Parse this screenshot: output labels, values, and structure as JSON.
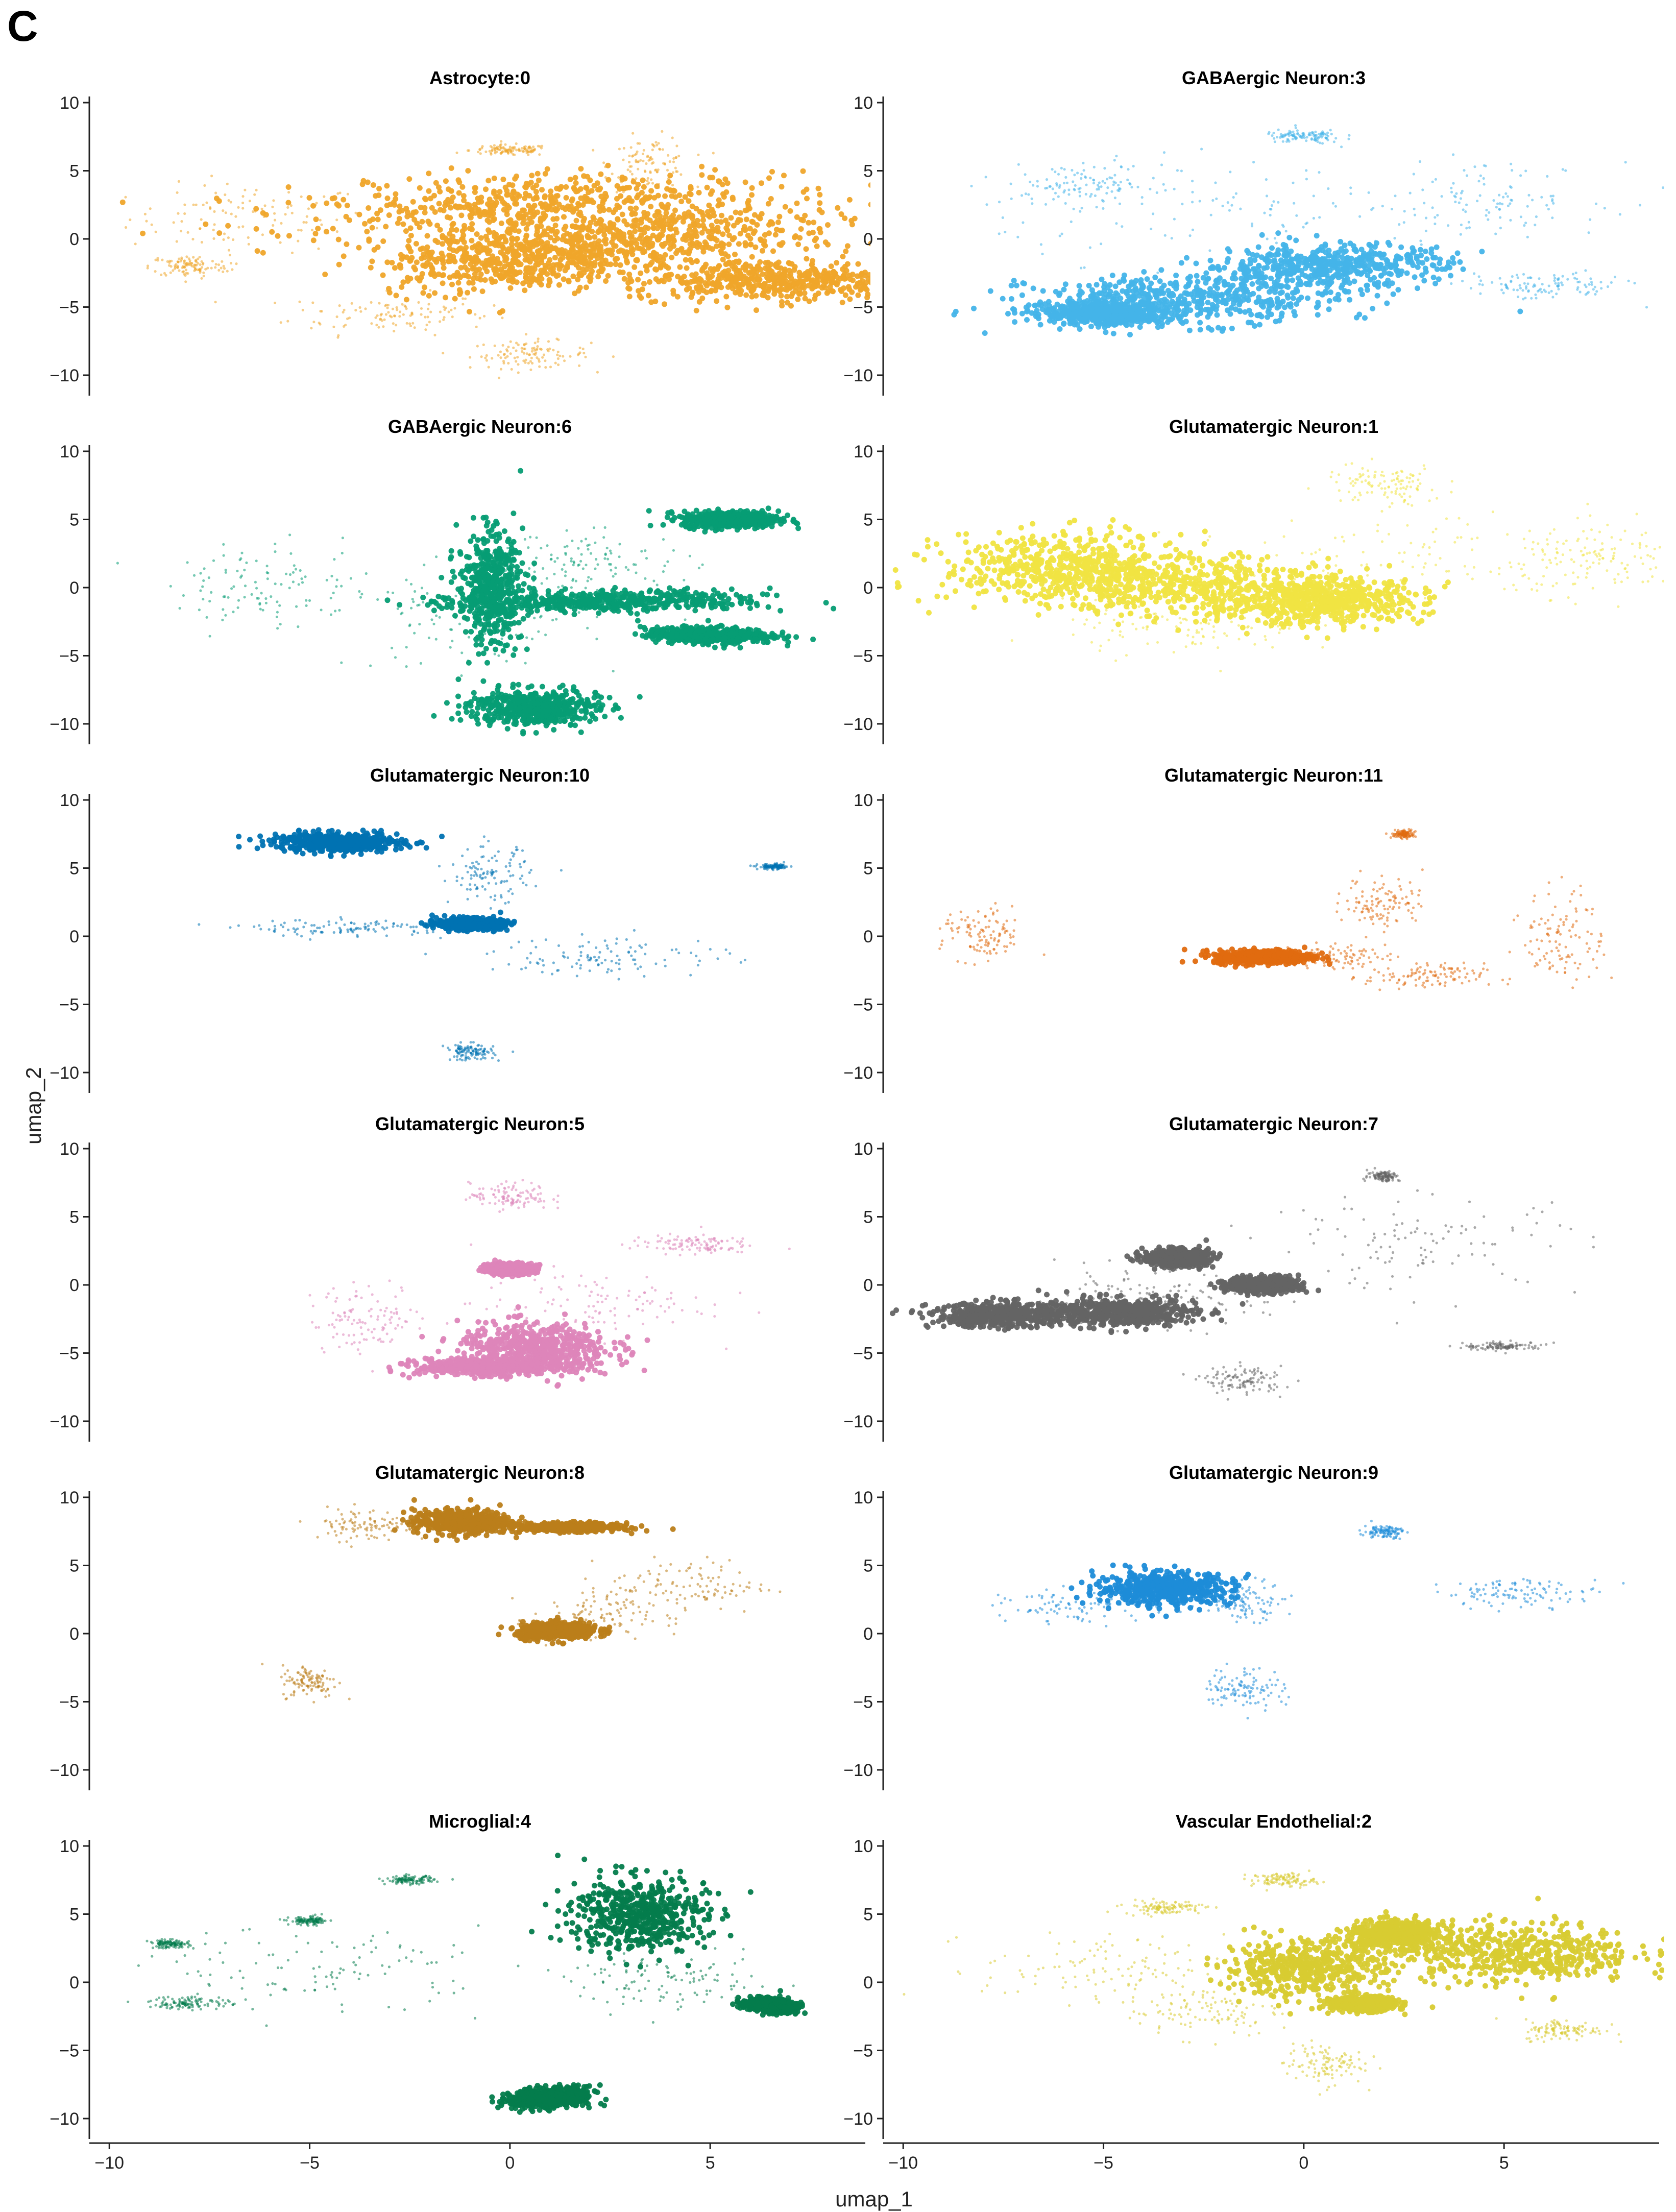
{
  "panel_label": "C",
  "chart_data": {
    "type": "scatter",
    "layout": "facet-grid",
    "columns": 2,
    "xlabel": "umap_1",
    "ylabel": "umap_2",
    "xlim": [
      -10.5,
      9.0
    ],
    "ylim": [
      -11.5,
      10.6
    ],
    "xticks": [
      -10,
      -5,
      0,
      5
    ],
    "xtick_labels": [
      "−10",
      "−5",
      "0",
      "5"
    ],
    "yticks": [
      10,
      5,
      0,
      -5,
      -10
    ],
    "ytick_labels": [
      "10",
      "5",
      "0",
      "−5",
      "−10"
    ],
    "grid": false,
    "legend": "none",
    "panels": [
      {
        "title": "Astrocyte:0",
        "color": "#EFA52A",
        "dense": [
          [
            0.5,
            2.5,
            5.5,
            2.4,
            0.9
          ],
          [
            3.5,
            0.0,
            4.0,
            2.5,
            0.6
          ],
          [
            6.5,
            -3.0,
            3.5,
            1.5,
            0.0
          ],
          [
            0.0,
            -1.5,
            3.0,
            2.5,
            0.3
          ]
        ],
        "sparse": [
          [
            -6.5,
            1.5,
            3.0,
            2.5,
            0.0
          ],
          [
            -3.0,
            -5.5,
            2.5,
            1.5,
            0.0
          ],
          [
            0.5,
            -8.5,
            1.5,
            1.0,
            0.0
          ],
          [
            0.0,
            6.5,
            1.0,
            0.4,
            0.0
          ],
          [
            3.5,
            5.5,
            1.0,
            2.0,
            0.0
          ],
          [
            -8.0,
            -2.0,
            1.0,
            0.8,
            0.0
          ]
        ]
      },
      {
        "title": "GABAergic Neuron:3",
        "color": "#45B4E9",
        "dense": [
          [
            -3.0,
            -4.5,
            4.0,
            1.8,
            0.2
          ],
          [
            0.5,
            -2.0,
            3.0,
            1.6,
            0.3
          ],
          [
            -5.0,
            -5.5,
            1.5,
            0.8,
            0.0
          ]
        ],
        "sparse": [
          [
            -1.5,
            2.0,
            6.0,
            3.5,
            0.0
          ],
          [
            0.0,
            7.5,
            1.0,
            0.5,
            0.0
          ],
          [
            4.5,
            3.0,
            3.0,
            2.5,
            0.0
          ],
          [
            -5.5,
            4.0,
            2.0,
            1.5,
            0.0
          ],
          [
            6.0,
            -3.5,
            2.0,
            1.0,
            0.0
          ]
        ]
      },
      {
        "title": "GABAergic Neuron:6",
        "color": "#069D74",
        "dense": [
          [
            0.6,
            -8.8,
            1.6,
            1.3,
            0.0
          ],
          [
            -0.5,
            0.0,
            0.8,
            4.0,
            0.0
          ],
          [
            2.5,
            -1.0,
            3.8,
            0.8,
            0.35
          ],
          [
            5.5,
            5.0,
            1.2,
            0.6,
            0.0
          ],
          [
            5.0,
            -3.5,
            1.5,
            0.6,
            -0.3
          ]
        ],
        "sparse": [
          [
            -1.0,
            -2.5,
            3.0,
            3.5,
            0.0
          ],
          [
            2.0,
            2.0,
            2.5,
            2.0,
            0.0
          ],
          [
            -6.0,
            0.0,
            2.5,
            3.0,
            0.0
          ]
        ]
      },
      {
        "title": "Glutamatergic Neuron:1",
        "color": "#F0E442",
        "dense": [
          [
            -6.0,
            1.5,
            3.0,
            2.5,
            0.0
          ],
          [
            -2.5,
            0.0,
            4.0,
            2.3,
            -0.2
          ],
          [
            0.5,
            -1.0,
            2.5,
            1.6,
            0.0
          ]
        ],
        "sparse": [
          [
            3.0,
            2.5,
            4.5,
            3.5,
            0.0
          ],
          [
            -3.0,
            -3.0,
            3.0,
            2.0,
            0.0
          ],
          [
            7.5,
            2.0,
            2.0,
            2.5,
            0.0
          ],
          [
            2.0,
            7.5,
            1.5,
            1.5,
            0.0
          ]
        ]
      },
      {
        "title": "Glutamatergic Neuron:10",
        "color": "#0072B2",
        "dense": [
          [
            -4.3,
            6.9,
            1.6,
            0.7,
            -0.1
          ],
          [
            -1.0,
            0.9,
            0.8,
            0.4,
            0.0
          ]
        ],
        "sparse": [
          [
            -4.0,
            0.6,
            2.5,
            0.6,
            0.0
          ],
          [
            -0.5,
            4.5,
            1.0,
            2.0,
            0.0
          ],
          [
            6.6,
            5.1,
            0.4,
            0.2,
            0.0
          ],
          [
            -1.0,
            -8.5,
            0.6,
            0.6,
            0.0
          ],
          [
            2.5,
            -1.5,
            3.0,
            1.5,
            0.0
          ]
        ]
      },
      {
        "title": "Glutamatergic Neuron:11",
        "color": "#E06B10",
        "dense": [
          [
            -1.0,
            -1.5,
            1.2,
            0.5,
            0.1
          ]
        ],
        "sparse": [
          [
            0.5,
            -1.5,
            1.5,
            0.8,
            0.0
          ],
          [
            2.0,
            2.5,
            1.0,
            2.0,
            0.0
          ],
          [
            6.5,
            0.0,
            1.0,
            3.5,
            0.0
          ],
          [
            2.5,
            7.5,
            0.3,
            0.3,
            0.0
          ],
          [
            -8.0,
            0.0,
            1.0,
            2.0,
            0.0
          ],
          [
            3.0,
            -3.0,
            1.5,
            1.0,
            0.0
          ]
        ]
      },
      {
        "title": "Glutamatergic Neuron:5",
        "color": "#DD85B9",
        "dense": [
          [
            0.6,
            -4.6,
            1.9,
            1.8,
            0.0
          ],
          [
            -0.5,
            -6.0,
            1.8,
            0.6,
            0.0
          ],
          [
            0.0,
            1.2,
            0.6,
            0.4,
            0.0
          ]
        ],
        "sparse": [
          [
            2.0,
            -1.5,
            3.0,
            2.5,
            0.0
          ],
          [
            4.5,
            3.0,
            1.5,
            0.7,
            0.0
          ],
          [
            0.0,
            6.5,
            1.0,
            1.0,
            0.0
          ],
          [
            -3.5,
            -2.5,
            1.5,
            2.5,
            0.0
          ]
        ]
      },
      {
        "title": "Glutamatergic Neuron:7",
        "color": "#646464",
        "dense": [
          [
            -7.5,
            -2.2,
            1.8,
            0.9,
            0.0
          ],
          [
            -4.5,
            -2.0,
            1.8,
            1.0,
            0.0
          ],
          [
            -3.2,
            2.0,
            0.8,
            0.6,
            0.0
          ],
          [
            -1.0,
            0.0,
            0.9,
            0.6,
            0.0
          ]
        ],
        "sparse": [
          [
            -4.0,
            -1.0,
            3.0,
            2.0,
            0.0
          ],
          [
            3.0,
            3.0,
            4.0,
            3.5,
            0.0
          ],
          [
            2.0,
            8.0,
            0.4,
            0.4,
            0.0
          ],
          [
            5.0,
            -4.5,
            1.0,
            0.3,
            0.0
          ],
          [
            -1.5,
            -7.0,
            1.0,
            1.0,
            0.0
          ]
        ]
      },
      {
        "title": "Glutamatergic Neuron:8",
        "color": "#BB7E1A",
        "dense": [
          [
            -1.2,
            8.2,
            1.2,
            0.9,
            0.0
          ],
          [
            1.2,
            0.2,
            1.0,
            0.6,
            0.2
          ],
          [
            1.5,
            7.8,
            1.2,
            0.3,
            0.0
          ]
        ],
        "sparse": [
          [
            2.0,
            1.0,
            1.5,
            2.0,
            0.0
          ],
          [
            4.5,
            3.5,
            2.0,
            2.0,
            0.0
          ],
          [
            -5.0,
            -3.5,
            0.7,
            1.2,
            0.0
          ],
          [
            -3.5,
            8.0,
            1.5,
            1.2,
            0.0
          ]
        ]
      },
      {
        "title": "Glutamatergic Neuron:9",
        "color": "#1E8CD8",
        "dense": [
          [
            -3.5,
            3.3,
            1.7,
            1.2,
            0.0
          ]
        ],
        "sparse": [
          [
            -5.5,
            2.0,
            2.0,
            1.2,
            0.0
          ],
          [
            -1.5,
            2.5,
            1.0,
            1.5,
            0.0
          ],
          [
            5.5,
            3.0,
            2.0,
            1.0,
            0.0
          ],
          [
            -1.5,
            -4.0,
            1.0,
            1.5,
            0.0
          ],
          [
            2.0,
            7.5,
            0.5,
            0.5,
            0.0
          ]
        ]
      },
      {
        "title": "Microglial:4",
        "color": "#047C4C",
        "dense": [
          [
            3.2,
            5.0,
            1.7,
            2.7,
            0.0
          ],
          [
            6.5,
            -1.7,
            0.6,
            0.5,
            -0.3
          ],
          [
            1.0,
            -8.5,
            1.0,
            0.8,
            0.3
          ]
        ],
        "sparse": [
          [
            -4.5,
            1.0,
            4.0,
            3.0,
            0.0
          ],
          [
            -2.5,
            7.5,
            0.6,
            0.3,
            0.0
          ],
          [
            -5.0,
            4.5,
            0.5,
            0.3,
            0.0
          ],
          [
            -8.5,
            2.8,
            0.5,
            0.3,
            0.0
          ],
          [
            -8.0,
            -1.5,
            1.0,
            0.5,
            0.0
          ],
          [
            4.0,
            0.0,
            2.5,
            2.0,
            0.0
          ]
        ]
      },
      {
        "title": "Vascular Endothelial:2",
        "color": "#D8CB32",
        "dense": [
          [
            5.3,
            2.2,
            3.0,
            2.2,
            0.0
          ],
          [
            2.3,
            3.5,
            1.2,
            1.0,
            0.0
          ],
          [
            1.5,
            -1.6,
            0.8,
            0.5,
            0.0
          ],
          [
            0.0,
            1.0,
            2.0,
            2.0,
            0.0
          ]
        ],
        "sparse": [
          [
            -5.0,
            1.0,
            3.0,
            2.5,
            0.0
          ],
          [
            -2.5,
            -2.0,
            2.0,
            2.0,
            0.0
          ],
          [
            6.5,
            -3.5,
            1.0,
            0.8,
            0.0
          ],
          [
            -3.5,
            5.5,
            1.0,
            0.5,
            0.0
          ],
          [
            -0.5,
            7.5,
            0.8,
            0.5,
            0.0
          ],
          [
            0.5,
            -6.0,
            1.0,
            1.5,
            0.0
          ]
        ]
      }
    ]
  }
}
